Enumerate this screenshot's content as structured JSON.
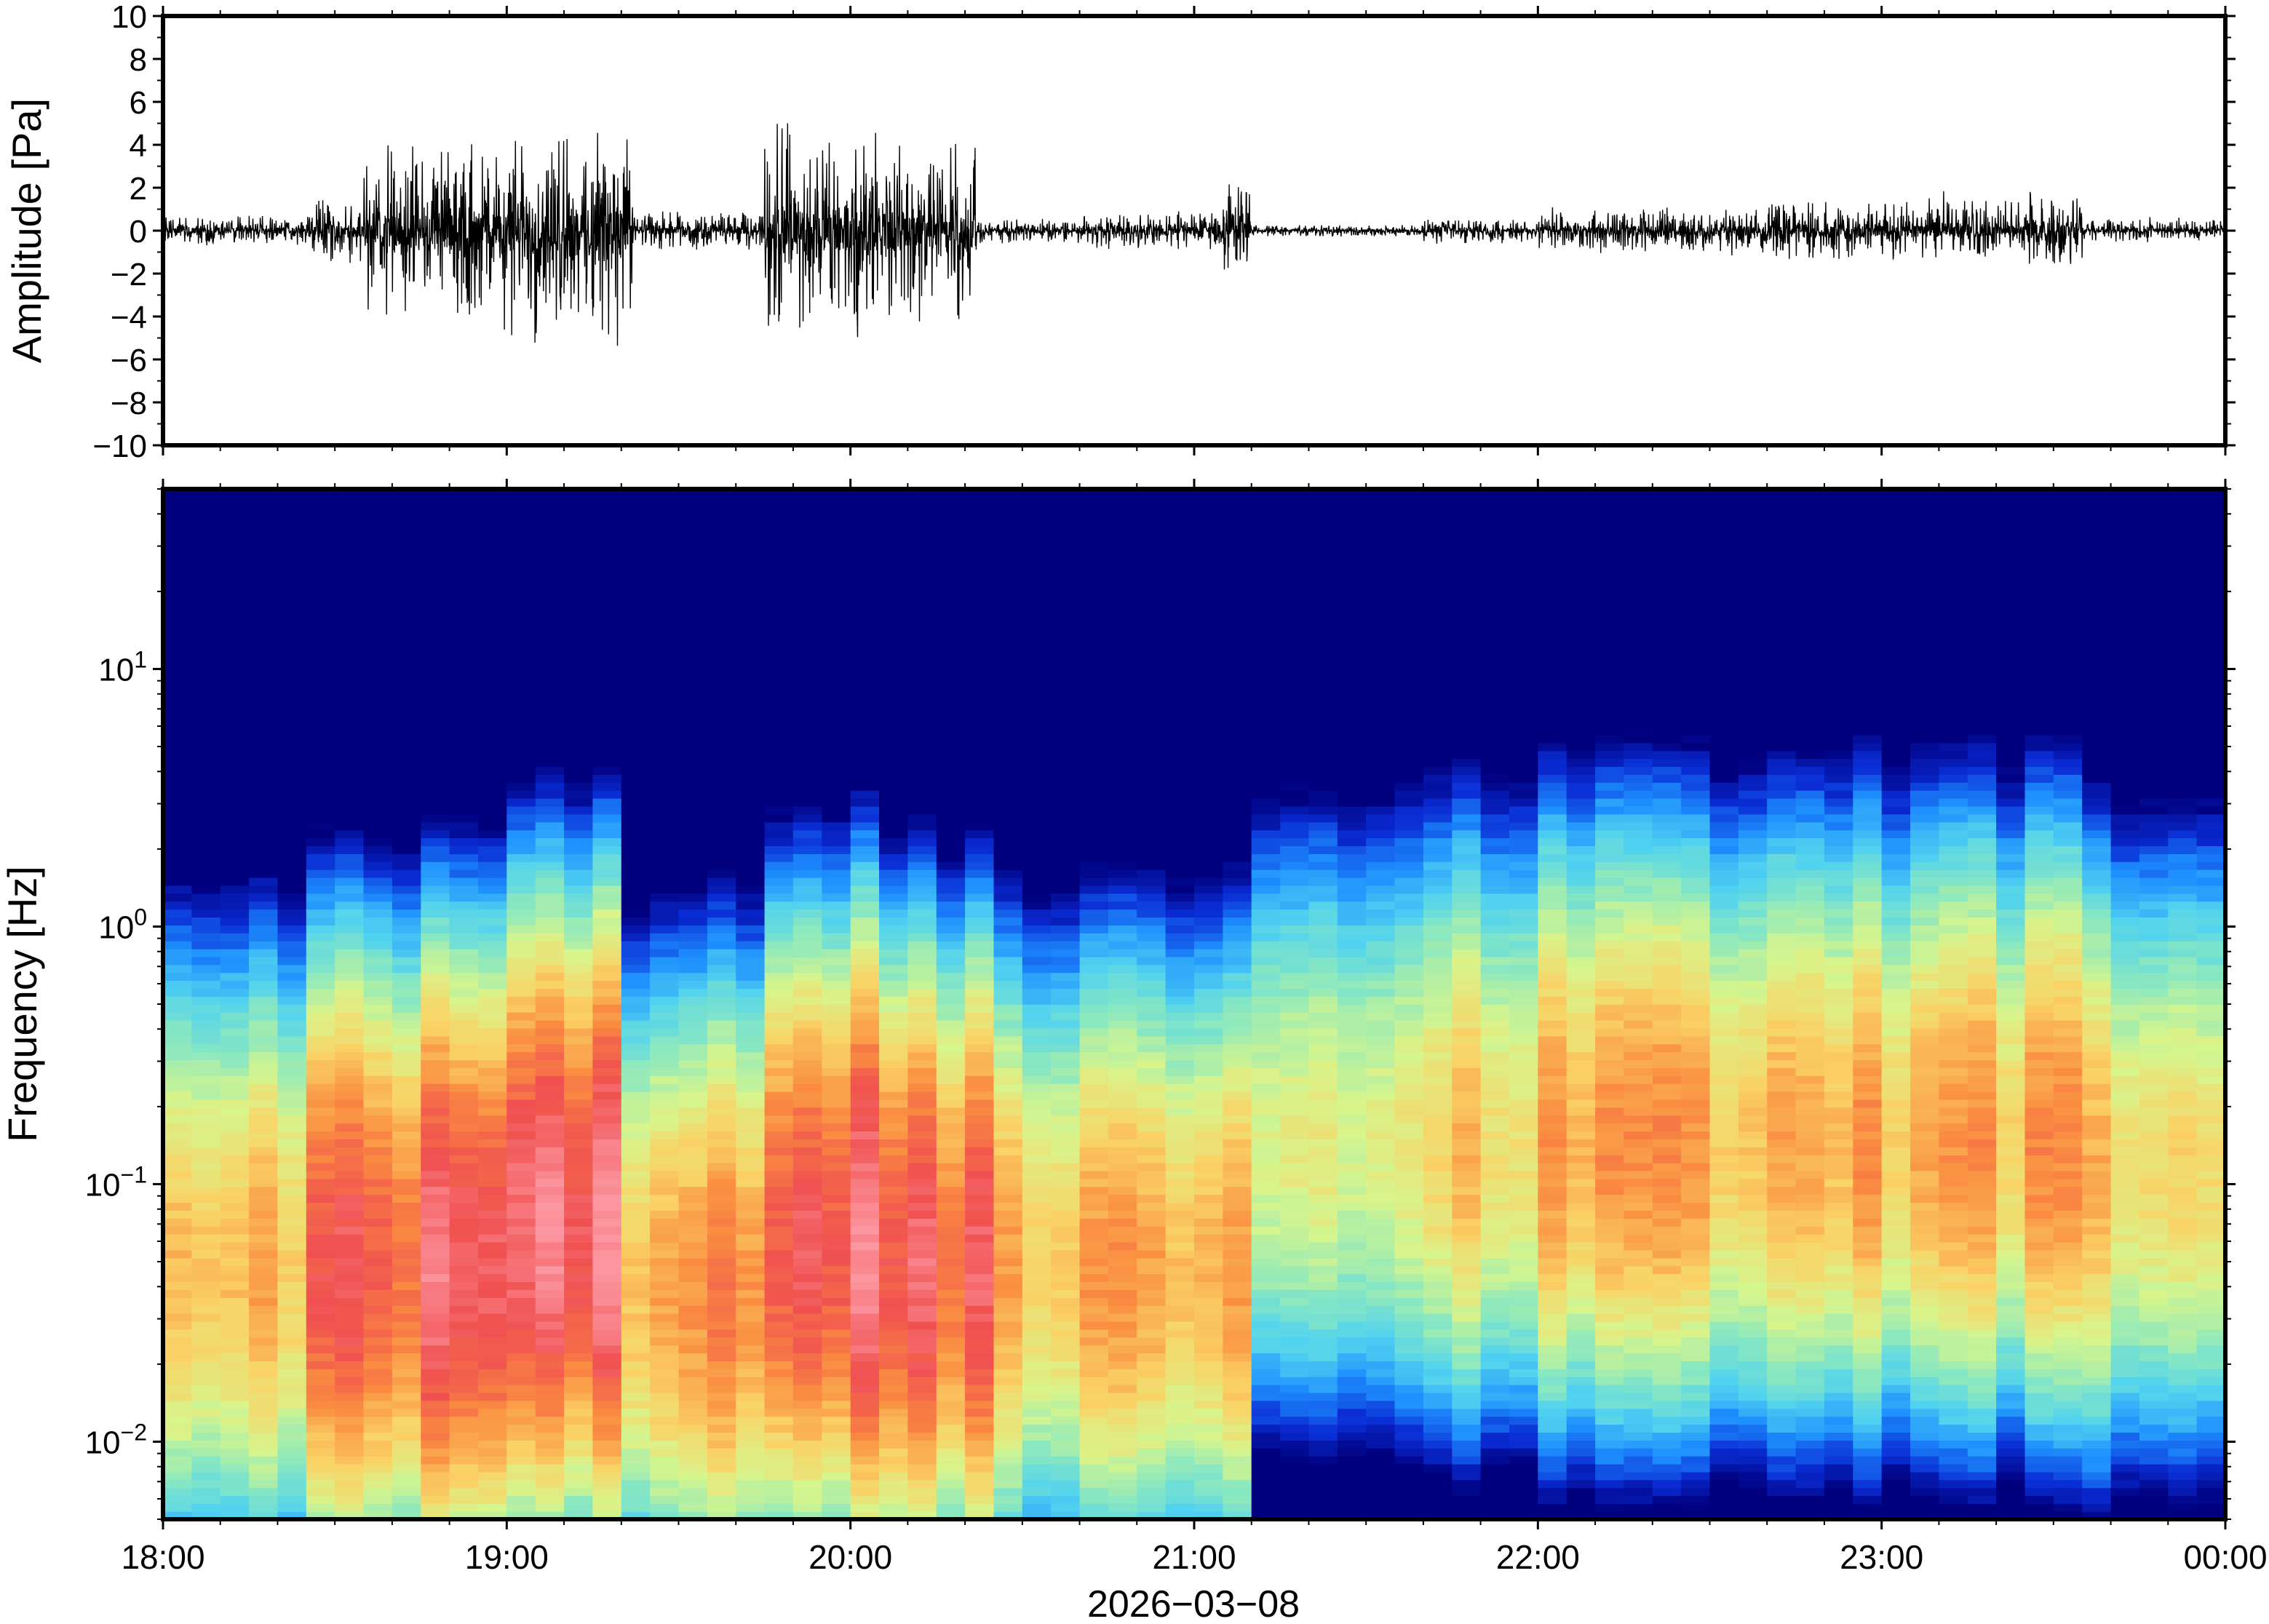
{
  "chart_data": [
    {
      "type": "line",
      "ylabel": "Amplitude [Pa]",
      "ylim": [
        -10,
        10
      ],
      "yticks": [
        10,
        8,
        6,
        4,
        2,
        0,
        -2,
        -4,
        -6,
        -8,
        -10
      ],
      "ytick_labels": [
        "10",
        "8",
        "6",
        "4",
        "2",
        "0",
        "−2",
        "−4",
        "−6",
        "−8",
        "−10"
      ],
      "x_range": [
        "18:00",
        "00:00"
      ],
      "grid": false,
      "series": [
        {
          "color": "#000000",
          "segments": [
            {
              "start": "18:00",
              "end": "18:25",
              "amp": 0.4
            },
            {
              "start": "18:25",
              "end": "18:35",
              "amp": 0.9
            },
            {
              "start": "18:35",
              "end": "19:00",
              "amp": 2.2
            },
            {
              "start": "19:00",
              "end": "19:22",
              "amp": 2.8
            },
            {
              "start": "19:22",
              "end": "19:45",
              "amp": 0.5
            },
            {
              "start": "19:45",
              "end": "20:05",
              "amp": 2.7
            },
            {
              "start": "20:05",
              "end": "20:22",
              "amp": 2.4
            },
            {
              "start": "20:22",
              "end": "20:40",
              "amp": 0.3
            },
            {
              "start": "20:40",
              "end": "21:05",
              "amp": 0.5
            },
            {
              "start": "21:05",
              "end": "21:10",
              "amp": 1.2
            },
            {
              "start": "21:10",
              "end": "21:40",
              "amp": 0.15
            },
            {
              "start": "21:40",
              "end": "22:00",
              "amp": 0.35
            },
            {
              "start": "22:00",
              "end": "22:40",
              "amp": 0.6
            },
            {
              "start": "22:40",
              "end": "23:25",
              "amp": 0.8
            },
            {
              "start": "23:25",
              "end": "23:35",
              "amp": 1.0
            },
            {
              "start": "23:35",
              "end": "00:00",
              "amp": 0.3
            }
          ]
        }
      ]
    },
    {
      "type": "heatmap",
      "ylabel": "Frequency [Hz]",
      "xlabel": "2026−03−08",
      "yscale": "log",
      "ylim": [
        0.005,
        50
      ],
      "yticks": [
        0.01,
        0.1,
        1,
        10
      ],
      "ytick_labels": [
        {
          "base": "10",
          "exp": "−2"
        },
        {
          "base": "10",
          "exp": "−1"
        },
        {
          "base": "10",
          "exp": "0"
        },
        {
          "base": "10",
          "exp": "1"
        }
      ],
      "xticks": [
        "18:00",
        "19:00",
        "20:00",
        "21:00",
        "22:00",
        "23:00",
        "00:00"
      ],
      "x_range": [
        "18:00",
        "00:00"
      ],
      "colormap": [
        "#00007f",
        "#0a2dd5",
        "#1e90ff",
        "#50d2f0",
        "#8ae8c0",
        "#d7f58c",
        "#fad265",
        "#fa8c41",
        "#f05050",
        "#fc96a0"
      ],
      "column_minutes": 5,
      "bands": [
        {
          "start": "18:00",
          "end": "18:25",
          "f_peak": 0.05,
          "max_level": 0.72
        },
        {
          "start": "18:25",
          "end": "18:45",
          "f_peak": 0.05,
          "max_level": 0.88
        },
        {
          "start": "18:45",
          "end": "19:00",
          "f_peak": 0.05,
          "max_level": 0.92
        },
        {
          "start": "19:00",
          "end": "19:22",
          "f_peak": 0.07,
          "max_level": 0.97
        },
        {
          "start": "19:22",
          "end": "19:47",
          "f_peak": 0.04,
          "max_level": 0.75
        },
        {
          "start": "19:47",
          "end": "20:05",
          "f_peak": 0.06,
          "max_level": 0.94
        },
        {
          "start": "20:05",
          "end": "20:27",
          "f_peak": 0.05,
          "max_level": 0.88
        },
        {
          "start": "20:27",
          "end": "21:04",
          "f_peak": 0.05,
          "max_level": 0.72
        },
        {
          "start": "21:04",
          "end": "21:12",
          "f_peak": 0.05,
          "max_level": 0.8
        },
        {
          "start": "21:12",
          "end": "21:37",
          "f_peak": 0.15,
          "max_level": 0.62
        },
        {
          "start": "21:37",
          "end": "22:00",
          "f_peak": 0.15,
          "max_level": 0.68
        },
        {
          "start": "22:00",
          "end": "23:35",
          "f_peak": 0.15,
          "max_level": 0.72
        },
        {
          "start": "23:35",
          "end": "00:00",
          "f_peak": 0.12,
          "max_level": 0.66
        }
      ]
    }
  ]
}
